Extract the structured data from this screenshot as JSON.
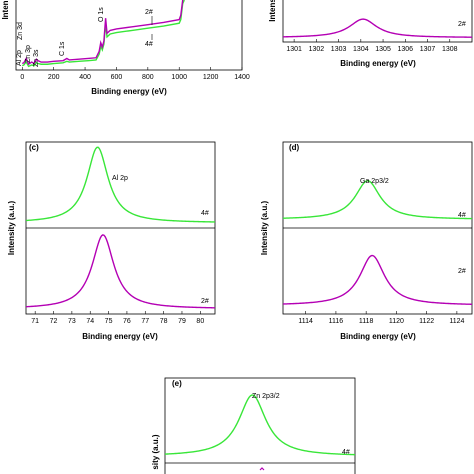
{
  "colors": {
    "sample_4": "#39e639",
    "sample_2": "#b400b4",
    "axis": "#000000"
  },
  "chart_data": [
    {
      "id": "a",
      "panel_label": "",
      "type": "line",
      "title": "",
      "xlabel": "Binding energy (eV)",
      "ylabel": "Inten",
      "xlim": [
        -40,
        1400
      ],
      "x_ticks": [
        0,
        200,
        400,
        600,
        800,
        1000,
        1200,
        1400
      ],
      "annotations": [
        "Al 2p",
        "Zn 3d",
        "Zn 3p",
        "Zn 3s",
        "C 1s",
        "O 1s",
        "2#",
        "4#"
      ],
      "series": [
        {
          "name": "4#",
          "color": "#39e639",
          "x": [
            0,
            10,
            25,
            40,
            60,
            75,
            90,
            100,
            120,
            140,
            160,
            200,
            260,
            284,
            300,
            360,
            420,
            470,
            490,
            500,
            510,
            520,
            531,
            540,
            560,
            600,
            700,
            800,
            900,
            1000,
            1010,
            1022,
            1030,
            1045,
            1060,
            1100
          ],
          "y": [
            0.06,
            0.07,
            0.11,
            0.05,
            0.07,
            0.06,
            0.1,
            0.09,
            0.08,
            0.08,
            0.08,
            0.09,
            0.1,
            0.12,
            0.11,
            0.12,
            0.13,
            0.14,
            0.22,
            0.33,
            0.28,
            0.36,
            0.64,
            0.46,
            0.5,
            0.52,
            0.55,
            0.58,
            0.61,
            0.65,
            0.7,
            0.92,
            0.96,
            1.1,
            1.2,
            1.2
          ]
        },
        {
          "name": "2#",
          "color": "#b400b4",
          "x": [
            0,
            10,
            25,
            40,
            60,
            75,
            90,
            100,
            120,
            140,
            160,
            200,
            260,
            284,
            300,
            360,
            420,
            470,
            490,
            500,
            510,
            520,
            531,
            540,
            560,
            600,
            700,
            800,
            900,
            1000,
            1010,
            1022,
            1030,
            1045,
            1060,
            1100
          ],
          "y": [
            0.09,
            0.1,
            0.16,
            0.08,
            0.11,
            0.09,
            0.15,
            0.13,
            0.11,
            0.11,
            0.11,
            0.12,
            0.13,
            0.16,
            0.14,
            0.15,
            0.16,
            0.17,
            0.26,
            0.38,
            0.32,
            0.4,
            0.72,
            0.51,
            0.55,
            0.57,
            0.6,
            0.63,
            0.66,
            0.7,
            0.76,
            0.97,
            1.02,
            1.15,
            1.2,
            1.2
          ]
        }
      ]
    },
    {
      "id": "b",
      "panel_label": "",
      "type": "line",
      "title": "",
      "xlabel": "Binding energy (eV)",
      "ylabel": "Intens",
      "xlim": [
        1300.5,
        1309
      ],
      "x_ticks": [
        1301,
        1302,
        1303,
        1304,
        1305,
        1306,
        1307,
        1308
      ],
      "annotations": [
        "2#"
      ],
      "series": [
        {
          "name": "2#",
          "color": "#b400b4",
          "peak_center": 1304.1,
          "peak_width": 0.75,
          "peak_height": 0.42,
          "baseline": 0.1
        }
      ]
    },
    {
      "id": "c",
      "panel_label": "(c)",
      "type": "line",
      "title": "",
      "xlabel": "Binding energy (eV)",
      "ylabel": "Intensity (a.u.)",
      "xlim": [
        70.5,
        80.8
      ],
      "x_ticks": [
        71,
        72,
        73,
        74,
        75,
        76,
        77,
        78,
        79,
        80
      ],
      "annotations": [
        "Al 2p",
        "4#",
        "2#"
      ],
      "series": [
        {
          "name": "4#",
          "color": "#39e639",
          "peak_center": 74.4,
          "peak_width": 0.7,
          "peak_height": 0.88,
          "baseline": 0.06
        },
        {
          "name": "2#",
          "color": "#b400b4",
          "peak_center": 74.7,
          "peak_width": 0.72,
          "peak_height": 0.86,
          "baseline": 0.06
        }
      ]
    },
    {
      "id": "d",
      "panel_label": "(d)",
      "type": "line",
      "title": "",
      "xlabel": "Binding energy (eV)",
      "ylabel": "Intensity (a.u.)",
      "xlim": [
        1112.5,
        1125
      ],
      "x_ticks": [
        1114,
        1116,
        1118,
        1120,
        1122,
        1124
      ],
      "annotations": [
        "Ga 2p3/2",
        "4#",
        "2#"
      ],
      "series": [
        {
          "name": "4#",
          "color": "#39e639",
          "peak_center": 1118.1,
          "peak_width": 1.0,
          "peak_height": 0.45,
          "baseline": 0.1
        },
        {
          "name": "2#",
          "color": "#b400b4",
          "peak_center": 1118.4,
          "peak_width": 1.0,
          "peak_height": 0.58,
          "baseline": 0.1
        }
      ]
    },
    {
      "id": "e",
      "panel_label": "(e)",
      "type": "line",
      "title": "",
      "xlabel": "",
      "ylabel": "sity (a.u.)",
      "xlim": [
        1015,
        1030
      ],
      "x_ticks": [],
      "annotations": [
        "Zn 2p3/2",
        "4#"
      ],
      "series": [
        {
          "name": "4#",
          "color": "#39e639",
          "peak_center": 1021.9,
          "peak_width": 1.3,
          "peak_height": 0.72,
          "baseline": 0.08
        }
      ]
    }
  ]
}
